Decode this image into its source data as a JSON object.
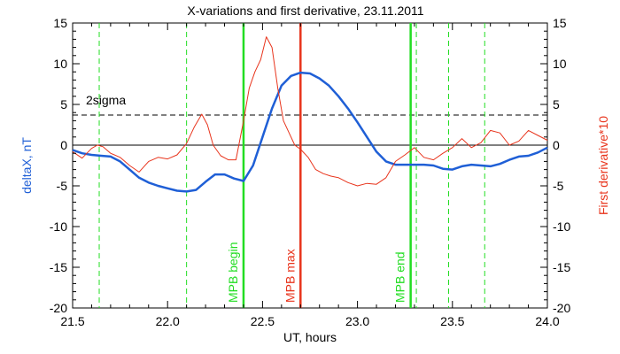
{
  "chart_data": {
    "type": "line",
    "title": "X-variations and first derivative, 23.11.2011",
    "xlabel": "UT, hours",
    "ylabel_left": "deltaX, nT",
    "ylabel_right": "First derivative*10",
    "xlim": [
      21.5,
      24.0
    ],
    "ylim": [
      -20,
      15
    ],
    "x_ticks": [
      "21.5",
      "22.0",
      "22.5",
      "23.0",
      "23.5",
      "24.0"
    ],
    "y_ticks": [
      "-20",
      "-15",
      "-10",
      "-5",
      "0",
      "5",
      "10",
      "15"
    ],
    "colors": {
      "deltaX": "#1f5fd6",
      "derivative": "#e8341c",
      "mpb": "#22dd22",
      "mpb_max": "#e8341c",
      "axis": "#000000"
    },
    "two_sigma": {
      "label": "2sigma",
      "value": 3.7
    },
    "dashed_green_lines": [
      21.64,
      22.1,
      23.31,
      23.48,
      23.67
    ],
    "vertical_markers": [
      {
        "label": "MPB begin",
        "x": 22.4,
        "color": "#22dd22"
      },
      {
        "label": "MPB max",
        "x": 22.7,
        "color": "#e8341c"
      },
      {
        "label": "MPB end",
        "x": 23.28,
        "color": "#22dd22"
      }
    ],
    "series": [
      {
        "name": "deltaX",
        "color": "#1f5fd6",
        "x": [
          21.5,
          21.55,
          21.6,
          21.65,
          21.7,
          21.75,
          21.8,
          21.85,
          21.9,
          21.95,
          22.0,
          22.05,
          22.1,
          22.15,
          22.2,
          22.25,
          22.3,
          22.35,
          22.4,
          22.45,
          22.5,
          22.55,
          22.6,
          22.65,
          22.7,
          22.75,
          22.8,
          22.85,
          22.9,
          22.95,
          23.0,
          23.05,
          23.1,
          23.15,
          23.2,
          23.25,
          23.3,
          23.35,
          23.4,
          23.45,
          23.5,
          23.55,
          23.6,
          23.65,
          23.7,
          23.75,
          23.8,
          23.85,
          23.9,
          23.95,
          24.0
        ],
        "values": [
          -0.6,
          -1.0,
          -1.2,
          -1.3,
          -1.4,
          -2.0,
          -3.0,
          -4.0,
          -4.6,
          -5.0,
          -5.3,
          -5.6,
          -5.7,
          -5.5,
          -4.5,
          -3.6,
          -3.6,
          -4.1,
          -4.4,
          -2.5,
          1.0,
          4.5,
          7.3,
          8.5,
          8.9,
          8.8,
          8.2,
          7.3,
          6.0,
          4.5,
          2.8,
          1.0,
          -0.8,
          -2.0,
          -2.4,
          -2.4,
          -2.4,
          -2.4,
          -2.5,
          -2.9,
          -3.0,
          -2.6,
          -2.4,
          -2.5,
          -2.6,
          -2.3,
          -1.8,
          -1.4,
          -1.3,
          -0.9,
          -0.3
        ]
      },
      {
        "name": "First derivative*10",
        "color": "#e8341c",
        "x": [
          21.5,
          21.55,
          21.6,
          21.63,
          21.66,
          21.7,
          21.75,
          21.8,
          21.85,
          21.9,
          21.95,
          22.0,
          22.05,
          22.1,
          22.14,
          22.18,
          22.21,
          22.24,
          22.28,
          22.32,
          22.36,
          22.4,
          22.43,
          22.46,
          22.49,
          22.52,
          22.55,
          22.58,
          22.61,
          22.64,
          22.67,
          22.7,
          22.74,
          22.78,
          22.82,
          22.86,
          22.9,
          22.95,
          23.0,
          23.05,
          23.1,
          23.15,
          23.2,
          23.25,
          23.3,
          23.35,
          23.4,
          23.45,
          23.5,
          23.55,
          23.6,
          23.65,
          23.7,
          23.75,
          23.8,
          23.85,
          23.9,
          23.95,
          24.0
        ],
        "values": [
          -0.8,
          -1.6,
          -0.4,
          0.0,
          -0.2,
          -1.0,
          -1.5,
          -2.5,
          -3.3,
          -2.0,
          -1.5,
          -1.7,
          -1.2,
          0.2,
          2.2,
          3.8,
          2.5,
          0.0,
          -1.3,
          -1.8,
          -1.8,
          3.0,
          7.0,
          9.0,
          10.5,
          13.3,
          12.0,
          7.0,
          3.0,
          1.5,
          0.0,
          -0.5,
          -1.5,
          -3.0,
          -3.5,
          -3.8,
          -4.0,
          -4.6,
          -5.0,
          -4.7,
          -4.8,
          -4.0,
          -2.0,
          -1.2,
          -0.3,
          -1.5,
          -1.8,
          -1.0,
          -0.3,
          0.8,
          -0.3,
          0.3,
          1.8,
          1.5,
          0.0,
          0.5,
          1.8,
          1.2,
          0.6
        ]
      }
    ]
  }
}
